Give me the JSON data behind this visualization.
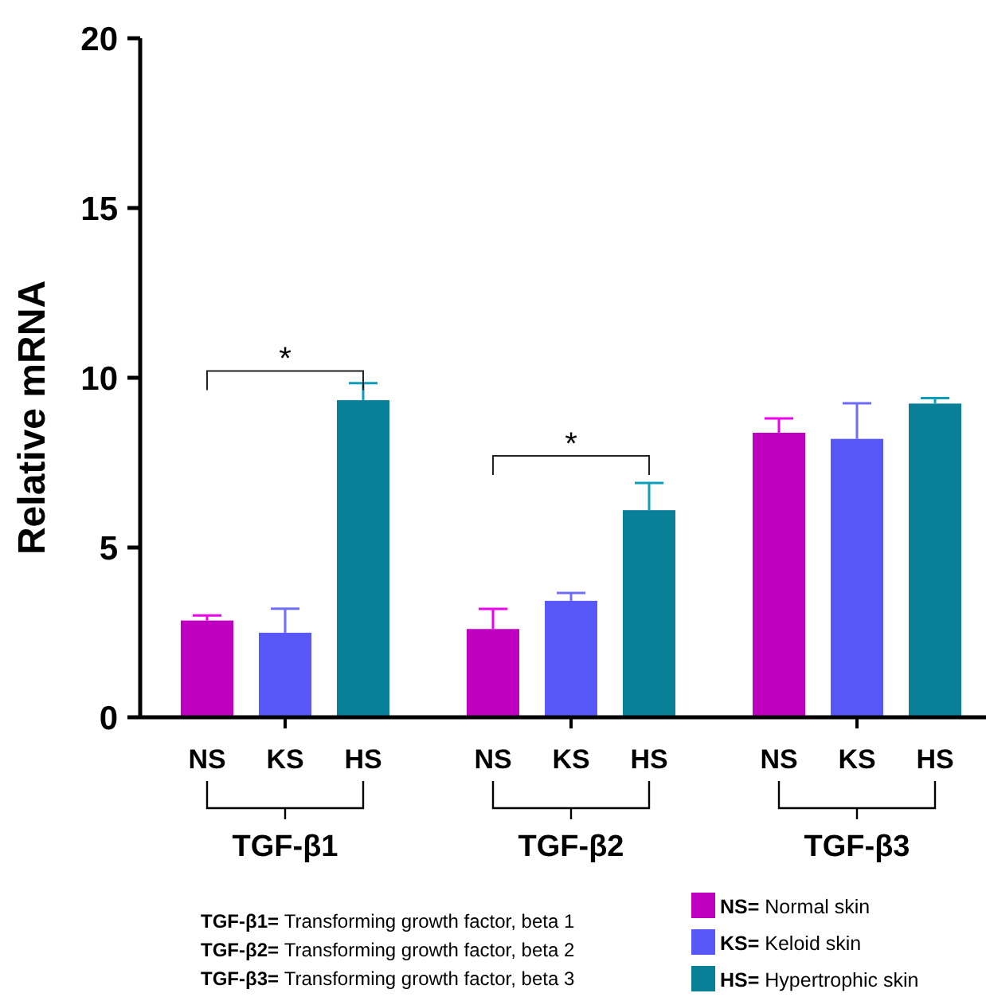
{
  "chart_data": {
    "type": "bar",
    "ylabel": "Relative mRNA",
    "categories": [
      "NS",
      "KS",
      "HS",
      "NS",
      "KS",
      "HS",
      "NS",
      "KS",
      "HS"
    ],
    "series": [
      {
        "name": "NS= Normal skin",
        "color": "#c000c0",
        "values": [
          2.85,
          null,
          null,
          2.6,
          null,
          null,
          8.38,
          null,
          null
        ],
        "errors": [
          [
            2.85,
            3.0
          ],
          null,
          null,
          [
            2.6,
            3.19
          ],
          null,
          null,
          [
            8.38,
            8.8
          ],
          null,
          null
        ]
      },
      {
        "name": "KS= Keloid skin",
        "color": "#5858f8",
        "values": [
          null,
          2.49,
          null,
          null,
          3.43,
          null,
          null,
          8.2,
          null
        ],
        "errors": [
          null,
          [
            2.49,
            3.2
          ],
          null,
          null,
          [
            3.43,
            3.66
          ],
          null,
          null,
          [
            8.2,
            9.25
          ],
          null
        ]
      },
      {
        "name": "HS= Hypertrophic skin",
        "color": "#0a8098",
        "values": [
          null,
          null,
          9.34,
          null,
          null,
          6.1,
          null,
          null,
          9.24
        ],
        "errors": [
          null,
          null,
          [
            9.34,
            9.84
          ],
          null,
          null,
          [
            6.1,
            6.9
          ],
          null,
          null,
          [
            9.24,
            9.4
          ]
        ]
      }
    ],
    "ylim": [
      0,
      20
    ],
    "yticks": [
      0,
      5,
      10,
      15,
      20
    ],
    "grid": false,
    "legend": "bottom right",
    "annotations": [
      "*",
      "*",
      "TGF-β1",
      "TGF-β2",
      "TGF-β3",
      "TGF-β1= Transforming growth factor, beta 1",
      "TGF-β2= Transforming growth factor, beta 2",
      "TGF-β3= Transforming growth factor, beta 3"
    ]
  }
}
